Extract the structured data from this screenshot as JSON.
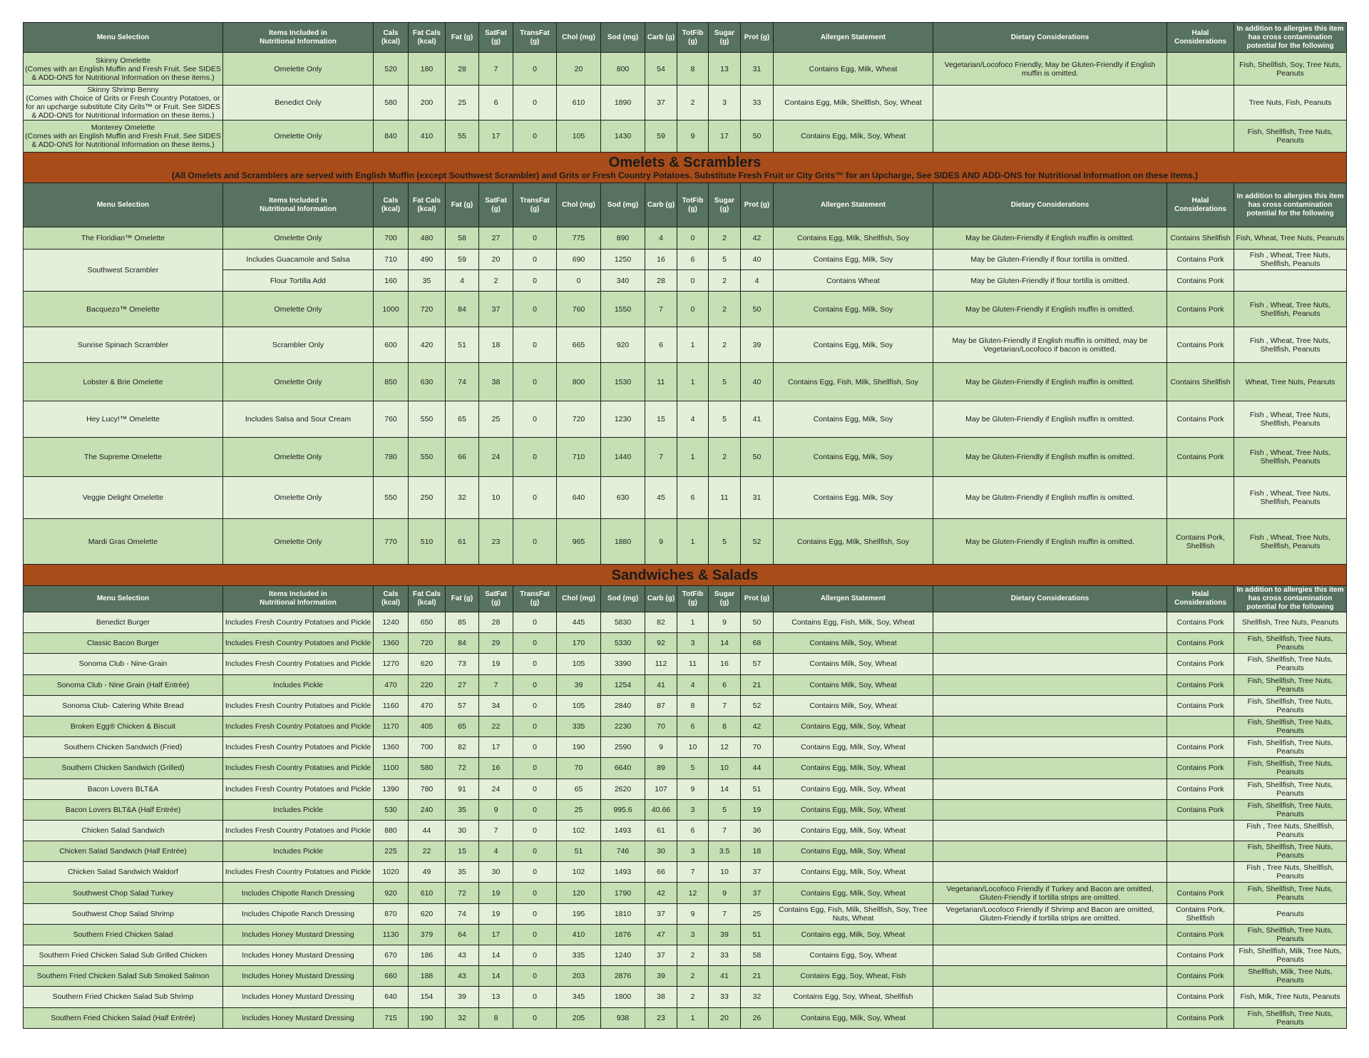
{
  "columns": [
    "Menu Selection",
    "Items Included in\nNutritional Information",
    "Cals\n(kcal)",
    "Fat Cals\n(kcal)",
    "Fat (g)",
    "SatFat (g)",
    "TransFat\n(g)",
    "Chol (mg)",
    "Sod (mg)",
    "Carb (g)",
    "TotFib\n(g)",
    "Sugar\n(g)",
    "Prot (g)",
    "Allergen Statement",
    "Dietary Considerations",
    "Halal\nConsiderations",
    "In addition to allergies this item has cross contamination potential for the following"
  ],
  "colors": {
    "header": "#57725f",
    "banner": "#a84c1a",
    "row_dark": "#c6dfb4",
    "row_light": "#e3efd9"
  },
  "sections": [
    {
      "title": "",
      "subtitle": "",
      "rows": [
        [
          "Skinny Omelette\n(Comes with an English Muffin and Fresh Fruit. See SIDES & ADD-ONS for Nutritional Information on these items.)",
          "Omelette Only",
          "520",
          "180",
          "28",
          "7",
          "0",
          "20",
          "800",
          "54",
          "8",
          "13",
          "31",
          "Contains Egg, Milk, Wheat",
          "Vegetarian/Locofoco Friendly,  May be Gluten-Friendly if English muffin is omitted.",
          "",
          "Fish, Shellfish, Soy, Tree Nuts, Peanuts"
        ],
        [
          "Skinny Shrimp Benny\n(Comes with Choice of Grits or Fresh Country Potatoes, or for an upcharge substitute City Grits™ or Fruit. See SIDES & ADD-ONS for Nutritional Information on these items.)",
          "Benedict Only",
          "580",
          "200",
          "25",
          "6",
          "0",
          "610",
          "1890",
          "37",
          "2",
          "3",
          "33",
          "Contains Egg, Milk, Shellfish, Soy, Wheat",
          "",
          "",
          "Tree Nuts, Fish, Peanuts"
        ],
        [
          "Monterey Omelette\n(Comes with an English Muffin and Fresh Fruit. See SIDES & ADD-ONS for Nutritional Information on these items.)",
          "Omelette Only",
          "840",
          "410",
          "55",
          "17",
          "0",
          "105",
          "1430",
          "59",
          "9",
          "17",
          "50",
          "Contains Egg, Milk, Soy, Wheat",
          "",
          "",
          "Fish, Shellfish, Tree Nuts, Peanuts"
        ]
      ]
    },
    {
      "title": "Omelets & Scramblers",
      "subtitle": "(All Omelets and Scramblers are served with English Muffin (except Southwest Scrambler) and Grits or Fresh Country Potatoes. Substitute Fresh Fruit or City Grits™ for an Upcharge, See SIDES AND ADD-ONS for Nutritional Information on these items.)",
      "rows": [
        [
          "The Floridian™ Omelette",
          "Omelette Only",
          "700",
          "480",
          "58",
          "27",
          "0",
          "775",
          "890",
          "4",
          "0",
          "2",
          "42",
          "Contains Egg, Milk, Shellfish, Soy",
          "May be Gluten-Friendly if English muffin is omitted.",
          "Contains Shellfish",
          "Fish, Wheat, Tree Nuts, Peanuts"
        ],
        [
          "Southwest Scrambler",
          "Includes Guacamole and Salsa",
          "710",
          "490",
          "59",
          "20",
          "0",
          "690",
          "1250",
          "16",
          "6",
          "5",
          "40",
          "Contains Egg, Milk, Soy",
          "May be Gluten-Friendly if flour tortilla is omitted.",
          "Contains Pork",
          "Fish , Wheat, Tree Nuts, Shellfish, Peanuts"
        ],
        [
          "",
          "Flour Tortilla Add",
          "160",
          "35",
          "4",
          "2",
          "0",
          "0",
          "340",
          "28",
          "0",
          "2",
          "4",
          "Contains Wheat",
          "May be Gluten-Friendly if flour tortilla is omitted.",
          "Contains Pork",
          ""
        ],
        [
          "Bacquezo™ Omelette",
          "Omelette Only",
          "1000",
          "720",
          "84",
          "37",
          "0",
          "760",
          "1550",
          "7",
          "0",
          "2",
          "50",
          "Contains Egg, Milk, Soy",
          "May be Gluten-Friendly if English muffin is omitted.",
          "Contains Pork",
          "Fish , Wheat, Tree Nuts, Shellfish, Peanuts"
        ],
        [
          "Sunrise Spinach Scrambler",
          "Scrambler Only",
          "600",
          "420",
          "51",
          "18",
          "0",
          "665",
          "920",
          "6",
          "1",
          "2",
          "39",
          "Contains Egg, Milk, Soy",
          "May be Gluten-Friendly if English muffin is omitted, may be Vegetarian/Locofoco if bacon is omitted.",
          "Contains Pork",
          "Fish , Wheat, Tree Nuts, Shellfish, Peanuts"
        ],
        [
          "Lobster & Brie Omelette",
          "Omelette Only",
          "850",
          "630",
          "74",
          "38",
          "0",
          "800",
          "1530",
          "11",
          "1",
          "5",
          "40",
          "Contains Egg, Fish, Milk, Shellfish, Soy",
          "May be Gluten-Friendly if English muffin is omitted.",
          "Contains Shellfish",
          "Wheat, Tree Nuts, Peanuts"
        ],
        [
          "Hey Lucy!™ Omelette",
          "Includes Salsa and Sour Cream",
          "760",
          "550",
          "65",
          "25",
          "0",
          "720",
          "1230",
          "15",
          "4",
          "5",
          "41",
          "Contains Egg, Milk, Soy",
          "May be Gluten-Friendly if English muffin is omitted.",
          "Contains Pork",
          "Fish , Wheat, Tree Nuts, Shellfish, Peanuts"
        ],
        [
          "The Supreme Omelette",
          "Omelette Only",
          "780",
          "550",
          "66",
          "24",
          "0",
          "710",
          "1440",
          "7",
          "1",
          "2",
          "50",
          "Contains Egg, Milk, Soy",
          "May be Gluten-Friendly if English muffin is omitted.",
          "Contains Pork",
          "Fish , Wheat, Tree Nuts, Shellfish, Peanuts"
        ],
        [
          "Veggie Delight Omelette",
          "Omelette Only",
          "550",
          "250",
          "32",
          "10",
          "0",
          "640",
          "630",
          "45",
          "6",
          "11",
          "31",
          "Contains Egg, Milk, Soy",
          "May be Gluten-Friendly if English muffin is omitted.",
          "",
          "Fish , Wheat, Tree Nuts, Shellfish, Peanuts"
        ],
        [
          "Mardi Gras Omelette",
          "Omelette Only",
          "770",
          "510",
          "61",
          "23",
          "0",
          "965",
          "1880",
          "9",
          "1",
          "5",
          "52",
          "Contains Egg, Milk, Shellfish, Soy",
          "May be Gluten-Friendly if English muffin is omitted.",
          "Contains Pork, Shellfish",
          "Fish , Wheat, Tree Nuts, Shellfish, Peanuts"
        ]
      ]
    },
    {
      "title": "Sandwiches & Salads",
      "subtitle": "",
      "rows": [
        [
          "Benedict Burger",
          "Includes Fresh Country Potatoes and Pickle",
          "1240",
          "650",
          "85",
          "28",
          "0",
          "445",
          "5830",
          "82",
          "1",
          "9",
          "50",
          "Contains Egg, Fish, Milk, Soy, Wheat",
          "",
          "Contains Pork",
          "Shellfish, Tree Nuts, Peanuts"
        ],
        [
          "Classic Bacon Burger",
          "Includes Fresh Country Potatoes and Pickle",
          "1360",
          "720",
          "84",
          "29",
          "0",
          "170",
          "5330",
          "92",
          "3",
          "14",
          "68",
          "Contains Milk, Soy, Wheat",
          "",
          "Contains Pork",
          "Fish, Shellfish, Tree Nuts, Peanuts"
        ],
        [
          "Sonoma Club - Nine-Grain",
          "Includes Fresh Country Potatoes and Pickle",
          "1270",
          "620",
          "73",
          "19",
          "0",
          "105",
          "3390",
          "112",
          "11",
          "16",
          "57",
          "Contains Milk, Soy, Wheat",
          "",
          "Contains Pork",
          "Fish, Shellfish, Tree Nuts, Peanuts"
        ],
        [
          "Sonoma Club - Nine Grain  (Half Entrée)",
          "Includes Pickle",
          "470",
          "220",
          "27",
          "7",
          "0",
          "39",
          "1254",
          "41",
          "4",
          "6",
          "21",
          "Contains Milk, Soy, Wheat",
          "",
          "Contains Pork",
          "Fish, Shellfish, Tree Nuts, Peanuts"
        ],
        [
          "Sonoma Club- Catering White Bread",
          "Includes Fresh Country Potatoes and Pickle",
          "1160",
          "470",
          "57",
          "34",
          "0",
          "105",
          "2840",
          "87",
          "8",
          "7",
          "52",
          "Contains Milk, Soy, Wheat",
          "",
          "Contains Pork",
          "Fish, Shellfish, Tree Nuts, Peanuts"
        ],
        [
          "Broken Egg® Chicken & Biscuit",
          "Includes Fresh Country Potatoes and Pickle",
          "1170",
          "405",
          "65",
          "22",
          "0",
          "335",
          "2230",
          "70",
          "6",
          "8",
          "42",
          "Contains Egg, Milk, Soy, Wheat",
          "",
          "",
          "Fish, Shellfish, Tree Nuts, Peanuts"
        ],
        [
          "Southern Chicken Sandwich (Fried)",
          "Includes Fresh Country Potatoes and Pickle",
          "1360",
          "700",
          "82",
          "17",
          "0",
          "190",
          "2590",
          "9",
          "10",
          "12",
          "70",
          "Contains Egg, Milk, Soy, Wheat",
          "",
          "Contains Pork",
          "Fish, Shellfish, Tree Nuts, Peanuts"
        ],
        [
          "Southern Chicken Sandwich (Grilled)",
          "Includes Fresh Country Potatoes and Pickle",
          "1100",
          "580",
          "72",
          "16",
          "0",
          "70",
          "6640",
          "89",
          "5",
          "10",
          "44",
          "Contains Egg, Milk, Soy, Wheat",
          "",
          "Contains Pork",
          "Fish, Shellfish, Tree Nuts, Peanuts"
        ],
        [
          "Bacon Lovers BLT&A",
          "Includes Fresh Country Potatoes and Pickle",
          "1390",
          "780",
          "91",
          "24",
          "0",
          "65",
          "2620",
          "107",
          "9",
          "14",
          "51",
          "Contains Egg, Milk, Soy, Wheat",
          "",
          "Contains Pork",
          "Fish, Shellfish, Tree Nuts, Peanuts"
        ],
        [
          "Bacon Lovers BLT&A (Half Entrée)",
          "Includes Pickle",
          "530",
          "240",
          "35",
          "9",
          "0",
          "25",
          "995.6",
          "40.66",
          "3",
          "5",
          "19",
          "Contains Egg, Milk, Soy, Wheat",
          "",
          "Contains Pork",
          "Fish, Shellfish, Tree Nuts, Peanuts"
        ],
        [
          "Chicken Salad Sandwich",
          "Includes Fresh Country Potatoes and Pickle",
          "880",
          "44",
          "30",
          "7",
          "0",
          "102",
          "1493",
          "61",
          "6",
          "7",
          "36",
          "Contains Egg, Milk, Soy, Wheat",
          "",
          "",
          "Fish , Tree Nuts, Shellfish, Peanuts"
        ],
        [
          "Chicken Salad Sandwich (Half Entrée)",
          "Includes Pickle",
          "225",
          "22",
          "15",
          "4",
          "0",
          "51",
          "746",
          "30",
          "3",
          "3.5",
          "18",
          "Contains Egg, Milk, Soy, Wheat",
          "",
          "",
          "Fish, Shellfish, Tree Nuts, Peanuts"
        ],
        [
          "Chicken Salad Sandwich Waldorf",
          "Includes Fresh Country Potatoes and Pickle",
          "1020",
          "49",
          "35",
          "30",
          "0",
          "102",
          "1493",
          "66",
          "7",
          "10",
          "37",
          "Contains Egg, Milk, Soy, Wheat",
          "",
          "",
          "Fish , Tree Nuts, Shellfish, Peanuts"
        ],
        [
          "Southwest Chop Salad Turkey",
          "Includes Chipotle Ranch Dressing",
          "920",
          "610",
          "72",
          "19",
          "0",
          "120",
          "1790",
          "42",
          "12",
          "9",
          "37",
          "Contains Egg, Milk, Soy, Wheat",
          "Vegetarian/Locofoco Friendly if Turkey and Bacon are omitted, Gluten-Friendly if tortilla strips are omitted.",
          "Contains Pork",
          "Fish, Shellfish, Tree Nuts, Peanuts"
        ],
        [
          "Southwest Chop Salad Shrimp",
          "Includes Chipotle Ranch Dressing",
          "870",
          "620",
          "74",
          "19",
          "0",
          "195",
          "1810",
          "37",
          "9",
          "7",
          "25",
          "Contains Egg, Fish, Milk, Shellfish, Soy, Tree Nuts, Wheat",
          "Vegetarian/Locofoco Friendly if Shrimp and Bacon are omitted, Gluten-Friendly if tortilla strips are omitted.",
          "Contains Pork, Shellfish",
          "Peanuts"
        ],
        [
          "Southern Fried Chicken Salad",
          "Includes Honey Mustard Dressing",
          "1130",
          "379",
          "64",
          "17",
          "0",
          "410",
          "1876",
          "47",
          "3",
          "39",
          "51",
          "Contains egg, Milk, Soy, Wheat",
          "",
          "Contains Pork",
          "Fish, Shellfish, Tree Nuts, Peanuts"
        ],
        [
          "Southern Fried Chicken Salad Sub Grilled Chicken",
          "Includes Honey Mustard Dressing",
          "670",
          "186",
          "43",
          "14",
          "0",
          "335",
          "1240",
          "37",
          "2",
          "33",
          "58",
          "Contains Egg, Soy, Wheat",
          "",
          "Contains Pork",
          "Fish, Shellfish, Milk, Tree Nuts, Peanuts"
        ],
        [
          "Southern Fried Chicken Salad Sub Smoked Salmon",
          "Includes Honey Mustard Dressing",
          "660",
          "188",
          "43",
          "14",
          "0",
          "203",
          "2876",
          "39",
          "2",
          "41",
          "21",
          "Contains Egg, Soy, Wheat, Fish",
          "",
          "Contains Pork",
          "Shellfish, Milk, Tree Nuts, Peanuts"
        ],
        [
          "Southern Fried Chicken Salad Sub Shrimp",
          "Includes Honey Mustard Dressing",
          "640",
          "154",
          "39",
          "13",
          "0",
          "345",
          "1800",
          "38",
          "2",
          "33",
          "32",
          "Contains Egg, Soy, Wheat, Shellfish",
          "",
          "Contains Pork",
          "Fish, Milk, Tree Nuts, Peanuts"
        ],
        [
          "Southern Fried Chicken Salad (Half Entrée)",
          "Includes Honey Mustard Dressing",
          "715",
          "190",
          "32",
          "8",
          "0",
          "205",
          "938",
          "23",
          "1",
          "20",
          "26",
          "Contains Egg, Milk, Soy, Wheat",
          "",
          "Contains Pork",
          "Fish, Shellfish, Tree Nuts, Peanuts"
        ]
      ]
    }
  ]
}
